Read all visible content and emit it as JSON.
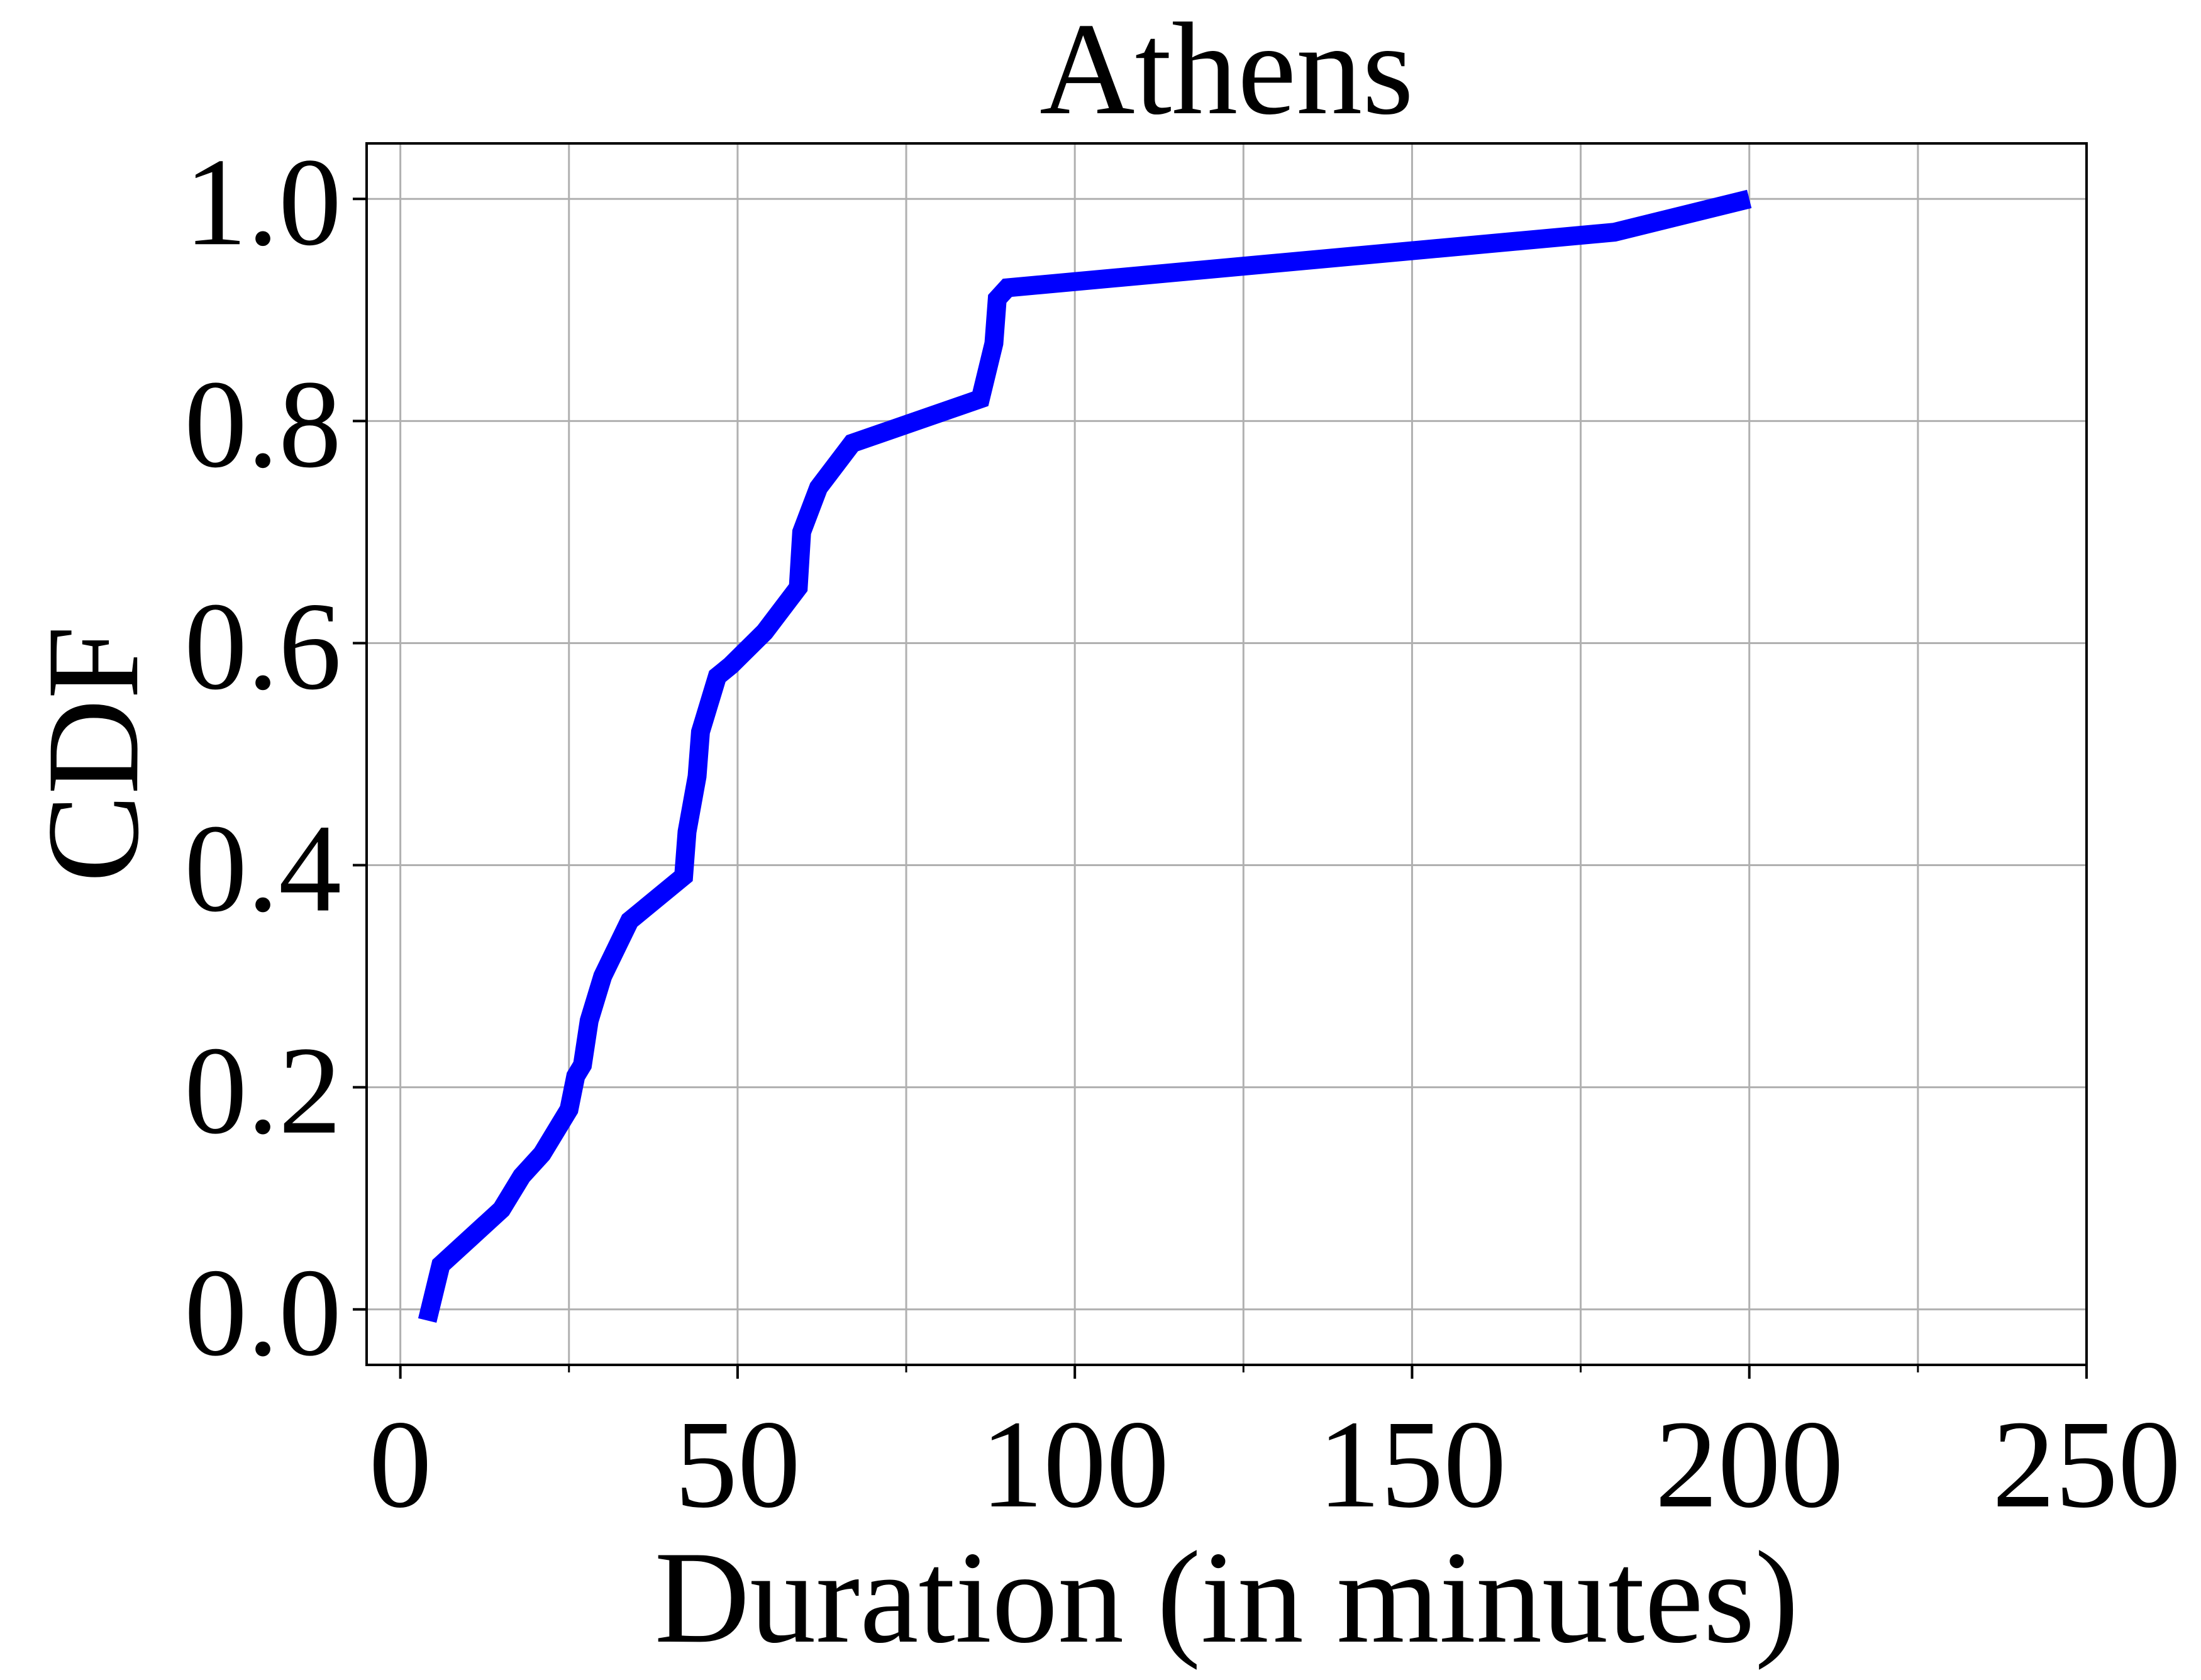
{
  "chart_data": {
    "type": "line",
    "title": "Athens",
    "xlabel": "Duration (in minutes)",
    "ylabel": "CDF",
    "xlim": [
      -5,
      250
    ],
    "ylim": [
      -0.05,
      1.05
    ],
    "x_ticks": [
      0,
      50,
      100,
      150,
      200,
      250
    ],
    "x_tick_labels": [
      "0",
      "50",
      "100",
      "150",
      "200",
      "250"
    ],
    "x_minor_ticks": [
      25,
      75,
      125,
      175,
      225
    ],
    "y_ticks": [
      0.0,
      0.2,
      0.4,
      0.6,
      0.8,
      1.0
    ],
    "y_tick_labels": [
      "0.0",
      "0.2",
      "0.4",
      "0.6",
      "0.8",
      "1.0"
    ],
    "grid": true,
    "series": [
      {
        "color": "#0000ff",
        "x": [
          4,
          6,
          15,
          18,
          21,
          25,
          26,
          27,
          28,
          30,
          34,
          36,
          42,
          42.5,
          44,
          44.5,
          47,
          49,
          54,
          59,
          59.5,
          62,
          67,
          86,
          88,
          88.5,
          90,
          180,
          200
        ],
        "y": [
          -0.01,
          0.04,
          0.09,
          0.12,
          0.14,
          0.18,
          0.21,
          0.22,
          0.26,
          0.3,
          0.35,
          0.36,
          0.39,
          0.43,
          0.48,
          0.52,
          0.57,
          0.58,
          0.61,
          0.65,
          0.7,
          0.74,
          0.78,
          0.82,
          0.87,
          0.91,
          0.92,
          0.97,
          1.0
        ]
      }
    ]
  }
}
